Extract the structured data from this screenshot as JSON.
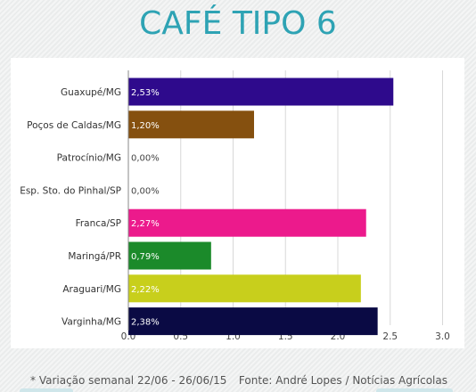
{
  "title": "CAFÉ TIPO 6",
  "footer": {
    "note": "* Variação semanal 22/06 - 26/06/15",
    "source": "Fonte: André Lopes / Notícias Agrícolas"
  },
  "chart_data": {
    "type": "bar",
    "orientation": "horizontal",
    "title": "CAFÉ TIPO 6",
    "categories": [
      "Guaxupé/MG",
      "Poços de Caldas/MG",
      "Patrocínio/MG",
      "Esp. Sto. do Pinhal/SP",
      "Franca/SP",
      "Maringá/PR",
      "Araguari/MG",
      "Varginha/MG"
    ],
    "values": [
      2.53,
      1.2,
      0.0,
      0.0,
      2.27,
      0.79,
      2.22,
      2.38
    ],
    "value_labels": [
      "2,53%",
      "1,20%",
      "0,00%",
      "0,00%",
      "2,27%",
      "0,79%",
      "2,22%",
      "2,38%"
    ],
    "colors": [
      "#2e0a8c",
      "#85500f",
      "#888888",
      "#888888",
      "#ec1a8c",
      "#1b8a2a",
      "#c8cf1c",
      "#0a0a44"
    ],
    "xlim": [
      0,
      3.0
    ],
    "xticks": [
      "0.0",
      "0.5",
      "1.0",
      "1.5",
      "2.0",
      "2.5",
      "3.0"
    ],
    "grid": true
  }
}
